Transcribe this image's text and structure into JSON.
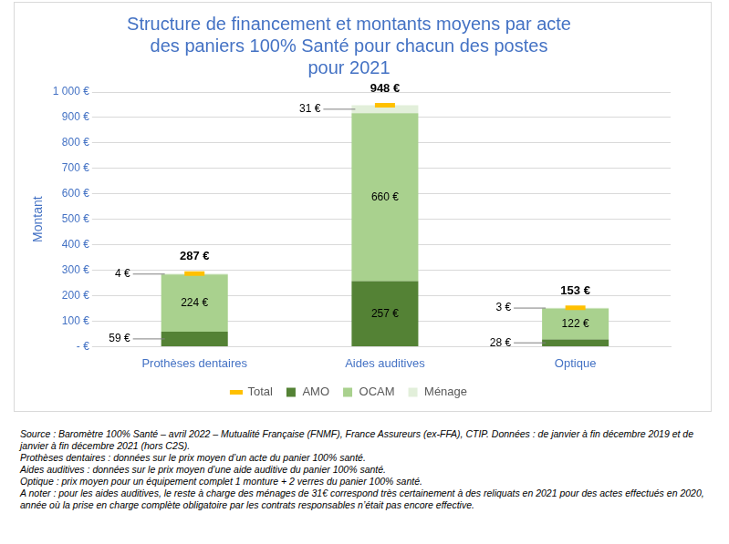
{
  "chart_data": {
    "type": "bar",
    "title": [
      "Structure de financement et montants moyens par acte",
      "des paniers 100% Santé pour chacun des postes",
      "pour 2021"
    ],
    "y_label": "Montant",
    "categories": [
      "Prothèses dentaires",
      "Aides auditives",
      "Optique"
    ],
    "series": [
      {
        "name": "AMO",
        "color": "#548235",
        "values": [
          59,
          257,
          28
        ],
        "value_labels": [
          "59 €",
          "257 €",
          "28 €"
        ]
      },
      {
        "name": "OCAM",
        "color": "#a9d18e",
        "values": [
          224,
          660,
          122
        ],
        "value_labels": [
          "224 €",
          "660 €",
          "122 €"
        ]
      },
      {
        "name": "Ménage",
        "color": "#e2efda",
        "values": [
          4,
          31,
          3
        ],
        "value_labels": [
          "4 €",
          "31 €",
          "3 €"
        ]
      },
      {
        "name": "Total",
        "type": "line",
        "marker": "line",
        "line_style": "none",
        "color": "#ffc000",
        "values": [
          287,
          948,
          153
        ],
        "value_labels": [
          "287 €",
          "948 €",
          "153 €"
        ]
      }
    ],
    "stacked": true,
    "data_labels": true,
    "legend": "bottom",
    "grid": true,
    "ylim": [
      0,
      1000
    ],
    "yticks": [
      {
        "value": 0,
        "label": "- €"
      },
      {
        "value": 100,
        "label": "100 €"
      },
      {
        "value": 200,
        "label": "200 €"
      },
      {
        "value": 300,
        "label": "300 €"
      },
      {
        "value": 400,
        "label": "400 €"
      },
      {
        "value": 500,
        "label": "500 €"
      },
      {
        "value": 600,
        "label": "600 €"
      },
      {
        "value": 700,
        "label": "700 €"
      },
      {
        "value": 800,
        "label": "800 €"
      },
      {
        "value": 900,
        "label": "900 €"
      },
      {
        "value": 1000,
        "label": "1 000 €"
      }
    ],
    "annotations": [
      "Source : Baromètre 100% Santé – avril 2022 – Mutualité Française (FNMF), France Assureurs (ex-FFA), CTIP. Données : de janvier à fin décembre 2019 et de janvier à fin décembre 2021 (hors C2S).",
      "Prothèses dentaires : données sur le prix moyen d’un acte du panier 100% santé.",
      "Aides auditives : données sur le prix moyen d’une aide auditive du panier 100% santé.",
      "Optique : prix moyen pour un équipement complet 1 monture + 2 verres du panier 100% santé.",
      "A noter : pour les aides auditives, le reste à charge des ménages de 31€ correspond très certainement à des reliquats en 2021 pour des actes effectués en 2020, année où la prise en charge complète obligatoire par les contrats responsables n’était pas encore effective."
    ]
  }
}
